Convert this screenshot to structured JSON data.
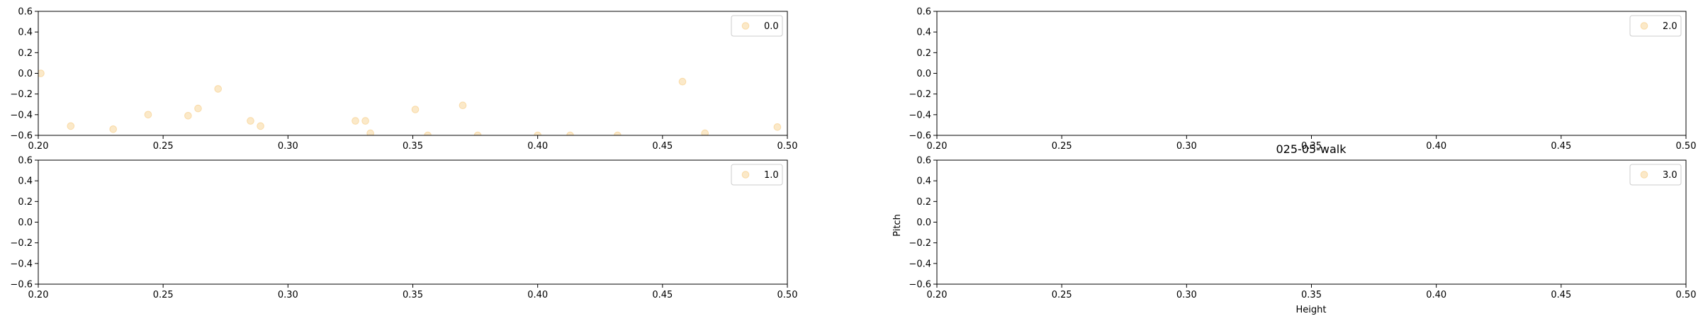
{
  "figure": {
    "title": "025-05-walk",
    "xlabel": "Height",
    "ylabel": "Pitch"
  },
  "chart_data": [
    {
      "type": "scatter",
      "panel": "top-left",
      "legend": "0.0",
      "legend_placement": "top-right",
      "marker_color": "#f5c777",
      "xlim": [
        0.2,
        0.5
      ],
      "ylim": [
        -0.6,
        0.6
      ],
      "xticks": [
        "0.20",
        "0.25",
        "0.30",
        "0.35",
        "0.40",
        "0.45",
        "0.50"
      ],
      "yticks": [
        "0.6",
        "0.4",
        "0.2",
        "0.0",
        "−0.2",
        "−0.4",
        "−0.6"
      ],
      "grid": false,
      "points": [
        [
          0.201,
          0.0
        ],
        [
          0.213,
          -0.51
        ],
        [
          0.23,
          -0.54
        ],
        [
          0.244,
          -0.4
        ],
        [
          0.26,
          -0.41
        ],
        [
          0.264,
          -0.34
        ],
        [
          0.272,
          -0.15
        ],
        [
          0.285,
          -0.46
        ],
        [
          0.289,
          -0.51
        ],
        [
          0.327,
          -0.46
        ],
        [
          0.331,
          -0.46
        ],
        [
          0.333,
          -0.58
        ],
        [
          0.351,
          -0.35
        ],
        [
          0.356,
          -0.6
        ],
        [
          0.37,
          -0.31
        ],
        [
          0.376,
          -0.6
        ],
        [
          0.4,
          -0.6
        ],
        [
          0.413,
          -0.6
        ],
        [
          0.432,
          -0.6
        ],
        [
          0.458,
          -0.08
        ],
        [
          0.467,
          -0.58
        ],
        [
          0.496,
          -0.52
        ]
      ]
    },
    {
      "type": "scatter",
      "panel": "top-right",
      "legend": "2.0",
      "legend_placement": "top-right",
      "marker_color": "#f5c777",
      "xlim": [
        0.2,
        0.5
      ],
      "ylim": [
        -0.6,
        0.6
      ],
      "xticks": [
        "0.20",
        "0.25",
        "0.30",
        "0.35",
        "0.40",
        "0.45",
        "0.50"
      ],
      "yticks": [
        "0.6",
        "0.4",
        "0.2",
        "0.0",
        "−0.2",
        "−0.4",
        "−0.6"
      ],
      "grid": false,
      "points": []
    },
    {
      "type": "scatter",
      "panel": "bottom-left",
      "legend": "1.0",
      "legend_placement": "top-right",
      "marker_color": "#f5c777",
      "xlim": [
        0.2,
        0.5
      ],
      "ylim": [
        -0.6,
        0.6
      ],
      "xticks": [
        "0.20",
        "0.25",
        "0.30",
        "0.35",
        "0.40",
        "0.45",
        "0.50"
      ],
      "yticks": [
        "0.6",
        "0.4",
        "0.2",
        "0.0",
        "−0.2",
        "−0.4",
        "−0.6"
      ],
      "grid": false,
      "points": []
    },
    {
      "type": "scatter",
      "panel": "bottom-right",
      "legend": "3.0",
      "legend_placement": "top-right",
      "marker_color": "#f5c777",
      "xlim": [
        0.2,
        0.5
      ],
      "ylim": [
        -0.6,
        0.6
      ],
      "xticks": [
        "0.20",
        "0.25",
        "0.30",
        "0.35",
        "0.40",
        "0.45",
        "0.50"
      ],
      "yticks": [
        "0.6",
        "0.4",
        "0.2",
        "0.0",
        "−0.2",
        "−0.4",
        "−0.6"
      ],
      "grid": false,
      "points": []
    }
  ]
}
